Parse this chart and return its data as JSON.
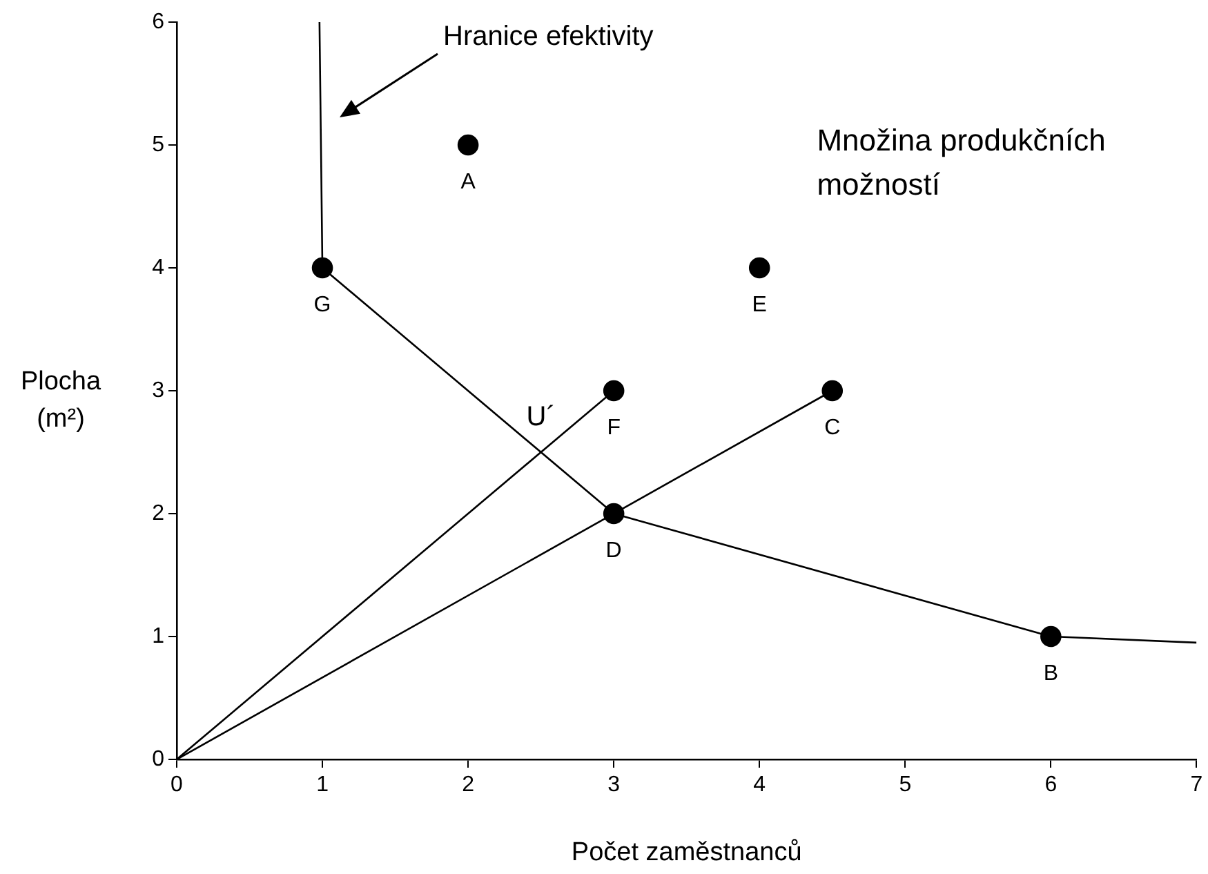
{
  "chart_data": {
    "type": "scatter",
    "xlabel": "Počet zaměstnanců",
    "ylabel": "Plocha (m²)",
    "xlim": [
      0,
      7
    ],
    "xticks": [
      0,
      1,
      2,
      3,
      4,
      5,
      6,
      7
    ],
    "ylim": [
      0,
      6
    ],
    "yticks": [
      0,
      1,
      2,
      3,
      4,
      5,
      6
    ],
    "grid": false,
    "legend": false,
    "series": [
      {
        "type": "line",
        "color": "#000000",
        "marker": "none",
        "x": [
          0.98,
          1,
          3,
          6,
          7
        ],
        "values": [
          6,
          4,
          2,
          1,
          0.95
        ]
      },
      {
        "type": "line",
        "color": "#000000",
        "marker": "none",
        "x": [
          0,
          3
        ],
        "values": [
          0,
          3
        ]
      },
      {
        "type": "line",
        "color": "#000000",
        "marker": "none",
        "x": [
          0,
          4.5
        ],
        "values": [
          0,
          3
        ]
      },
      {
        "name": "A",
        "type": "scatter",
        "color": "#000000",
        "marker": "circle",
        "x": [
          2
        ],
        "values": [
          5
        ]
      },
      {
        "name": "B",
        "type": "scatter",
        "color": "#000000",
        "marker": "circle",
        "x": [
          6
        ],
        "values": [
          1
        ]
      },
      {
        "name": "C",
        "type": "scatter",
        "color": "#000000",
        "marker": "circle",
        "x": [
          4.5
        ],
        "values": [
          3
        ]
      },
      {
        "name": "D",
        "type": "scatter",
        "color": "#000000",
        "marker": "circle",
        "x": [
          3
        ],
        "values": [
          2
        ]
      },
      {
        "name": "E",
        "type": "scatter",
        "color": "#000000",
        "marker": "circle",
        "x": [
          4
        ],
        "values": [
          4
        ]
      },
      {
        "name": "F",
        "type": "scatter",
        "color": "#000000",
        "marker": "circle",
        "x": [
          3
        ],
        "values": [
          3
        ]
      },
      {
        "name": "G",
        "type": "scatter",
        "color": "#000000",
        "marker": "circle",
        "x": [
          1
        ],
        "values": [
          4
        ]
      }
    ],
    "annotations": [
      "Hranice efektivity",
      {
        "text": "U´",
        "x": 2.5,
        "y": 2.5
      },
      "Množina produkčních možností"
    ]
  }
}
